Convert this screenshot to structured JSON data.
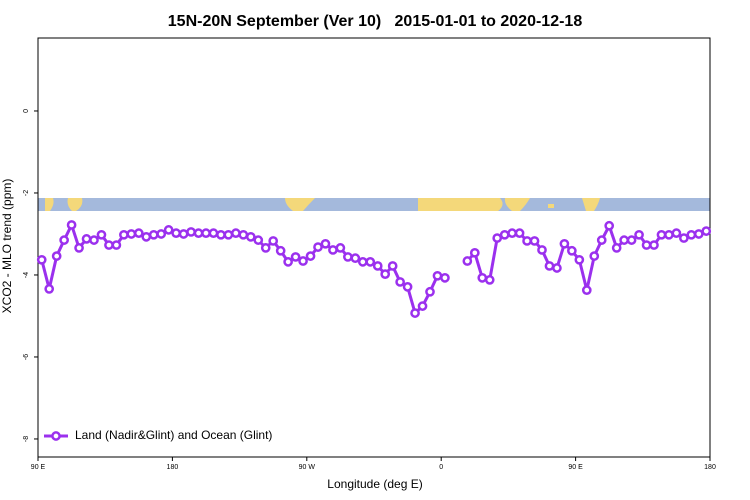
{
  "chart_data": {
    "type": "line",
    "title": "15N-20N September (Ver 10)   2015-01-01 to 2020-12-18",
    "x_label": "Longitude (deg E)",
    "y_label": "XCO2 - MLO trend (ppm)",
    "x": [
      92.5,
      97.5,
      102.5,
      107.5,
      112.5,
      117.5,
      122.5,
      127.5,
      132.5,
      137.5,
      142.5,
      147.5,
      152.5,
      157.5,
      162.5,
      167.5,
      172.5,
      177.5,
      182.5,
      187.5,
      192.5,
      197.5,
      202.5,
      207.5,
      212.5,
      217.5,
      222.5,
      227.5,
      232.5,
      237.5,
      242.5,
      247.5,
      252.5,
      257.5,
      262.5,
      267.5,
      272.5,
      277.5,
      282.5,
      287.5,
      292.5,
      297.5,
      302.5,
      307.5,
      312.5,
      317.5,
      322.5,
      327.5,
      332.5,
      337.5,
      342.5,
      347.5,
      352.5,
      357.5,
      362.5,
      367.5,
      372.5,
      377.5,
      382.5,
      387.5,
      392.5,
      397.5,
      402.5,
      407.5,
      412.5,
      417.5,
      422.5,
      427.5,
      432.5,
      437.5,
      442.5,
      447.5,
      452.5,
      457.5,
      462.5,
      467.5,
      472.5,
      477.5,
      482.5,
      487.5,
      492.5,
      497.5,
      502.5,
      507.5,
      512.5,
      517.5,
      522.5,
      527.5,
      532.5,
      537.5
    ],
    "series": [
      {
        "name": "Land (Nadir&Glint) and Ocean (Glint)",
        "color": "#9b30ee",
        "values": [
          -3.63,
          -4.34,
          -3.54,
          -3.15,
          -2.78,
          -3.34,
          -3.12,
          -3.15,
          -3.02,
          -3.27,
          -3.27,
          -3.02,
          -3.0,
          -2.98,
          -3.07,
          -3.02,
          -3.0,
          -2.9,
          -2.98,
          -3.0,
          -2.95,
          -2.98,
          -2.98,
          -2.98,
          -3.02,
          -3.02,
          -2.98,
          -3.02,
          -3.07,
          -3.15,
          -3.34,
          -3.17,
          -3.41,
          -3.68,
          -3.56,
          -3.66,
          -3.54,
          -3.32,
          -3.24,
          -3.39,
          -3.34,
          -3.56,
          -3.59,
          -3.68,
          -3.68,
          -3.78,
          -3.98,
          -3.78,
          -4.17,
          -4.29,
          -4.93,
          -4.76,
          -4.41,
          -4.02,
          -4.07,
          null,
          null,
          -3.66,
          -3.46,
          -4.07,
          -4.12,
          -3.1,
          -3.02,
          -2.98,
          -2.98,
          -3.17,
          -3.17,
          -3.39,
          -3.78,
          -3.83,
          -3.24,
          -3.41,
          -3.63,
          -4.37,
          -3.54,
          -3.15,
          -2.8,
          -3.34,
          -3.15,
          -3.15,
          -3.02,
          -3.27,
          -3.27,
          -3.02,
          -3.02,
          -2.98,
          -3.1,
          -3.02,
          -3.0,
          -2.93
        ]
      }
    ],
    "xlim": [
      90,
      540
    ],
    "xticks": [
      {
        "value": 90,
        "label": "90 E"
      },
      {
        "value": 180,
        "label": "180"
      },
      {
        "value": 270,
        "label": "90 W"
      },
      {
        "value": 360,
        "label": "0"
      },
      {
        "value": 450,
        "label": "90 E"
      },
      {
        "value": 540,
        "label": "180"
      }
    ],
    "ylim": [
      -8.44,
      1.78
    ],
    "yticks": [
      0,
      -2,
      -4,
      -6,
      -8
    ],
    "legend": "bottom-left"
  }
}
